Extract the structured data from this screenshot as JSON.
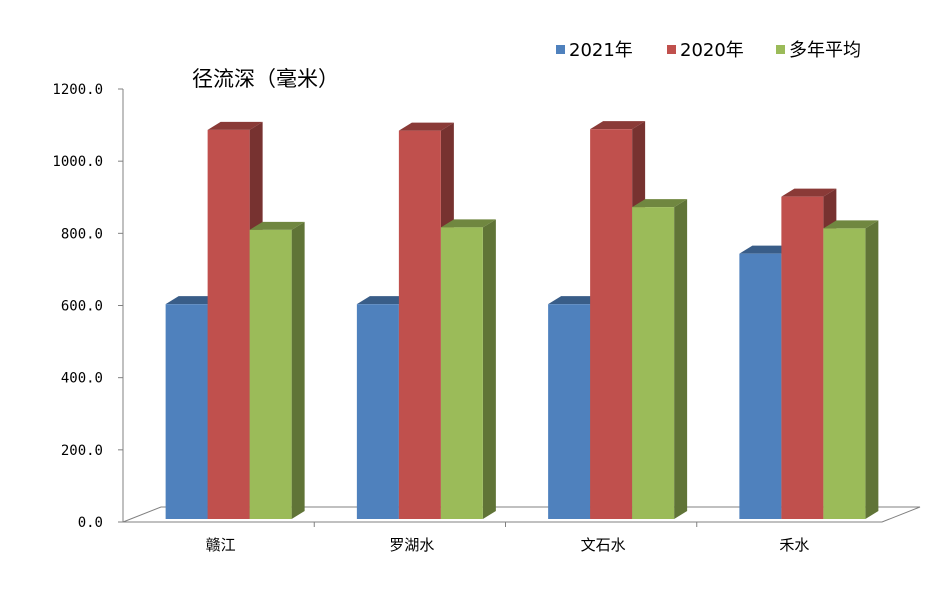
{
  "chart_data": {
    "type": "bar",
    "style": "3d-clustered-column",
    "ylabel": "径流深（毫米）",
    "ylim": [
      0,
      1200
    ],
    "yticks": [
      "0.0",
      "200.0",
      "400.0",
      "600.0",
      "800.0",
      "1000.0",
      "1200.0"
    ],
    "categories": [
      "赣江",
      "罗湖水",
      "文石水",
      "禾水"
    ],
    "series": [
      {
        "name": "2021年",
        "values": [
          612,
          612,
          612,
          752
        ],
        "color": "#4f81bd"
      },
      {
        "name": "2020年",
        "values": [
          1095,
          1093,
          1097,
          910
        ],
        "color": "#c0504d"
      },
      {
        "name": "多年平均",
        "values": [
          818,
          825,
          881,
          822
        ],
        "color": "#9bbb59"
      }
    ],
    "legend": "top-right",
    "grid": false
  }
}
